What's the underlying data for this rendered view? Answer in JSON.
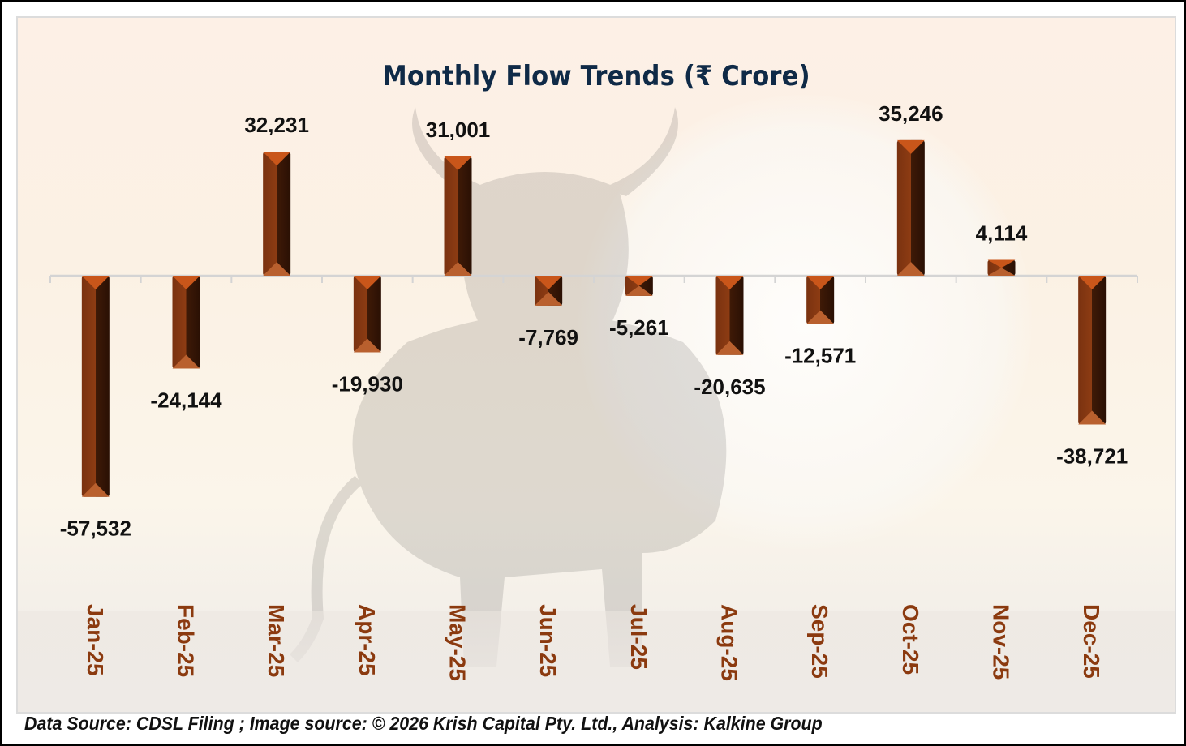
{
  "chart_data": {
    "type": "bar",
    "title": "Monthly Flow Trends (₹ Crore)",
    "xlabel": "",
    "ylabel": "",
    "ylim": [
      -60000,
      40000
    ],
    "grid": false,
    "legend": "none",
    "categories": [
      "Jan-25",
      "Feb-25",
      "Mar-25",
      "Apr-25",
      "May-25",
      "Jun-25",
      "Jul-25",
      "Aug-25",
      "Sep-25",
      "Oct-25",
      "Nov-25",
      "Dec-25"
    ],
    "values": [
      -57532,
      -24144,
      32231,
      -19930,
      31001,
      -7769,
      -5261,
      -20635,
      -12571,
      35246,
      4114,
      -38721
    ],
    "data_labels": [
      "-57,532",
      "-24,144",
      "32,231",
      "-19,930",
      "31,001",
      "-7,769",
      "-5,261",
      "-20,635",
      "-12,571",
      "35,246",
      "4,114",
      "-38,721"
    ],
    "colors": {
      "bar_light": "#8a3a12",
      "bar_dark": "#3a1606",
      "bar_top": "#c9561a",
      "axis": "#d4d4d4",
      "category_label": "#8b3a0f",
      "title": "#0f2a47"
    }
  },
  "footer": {
    "text": "Data Source: CDSL Filing ; Image source: © 2026 Krish Capital Pty. Ltd., Analysis: Kalkine Group"
  }
}
